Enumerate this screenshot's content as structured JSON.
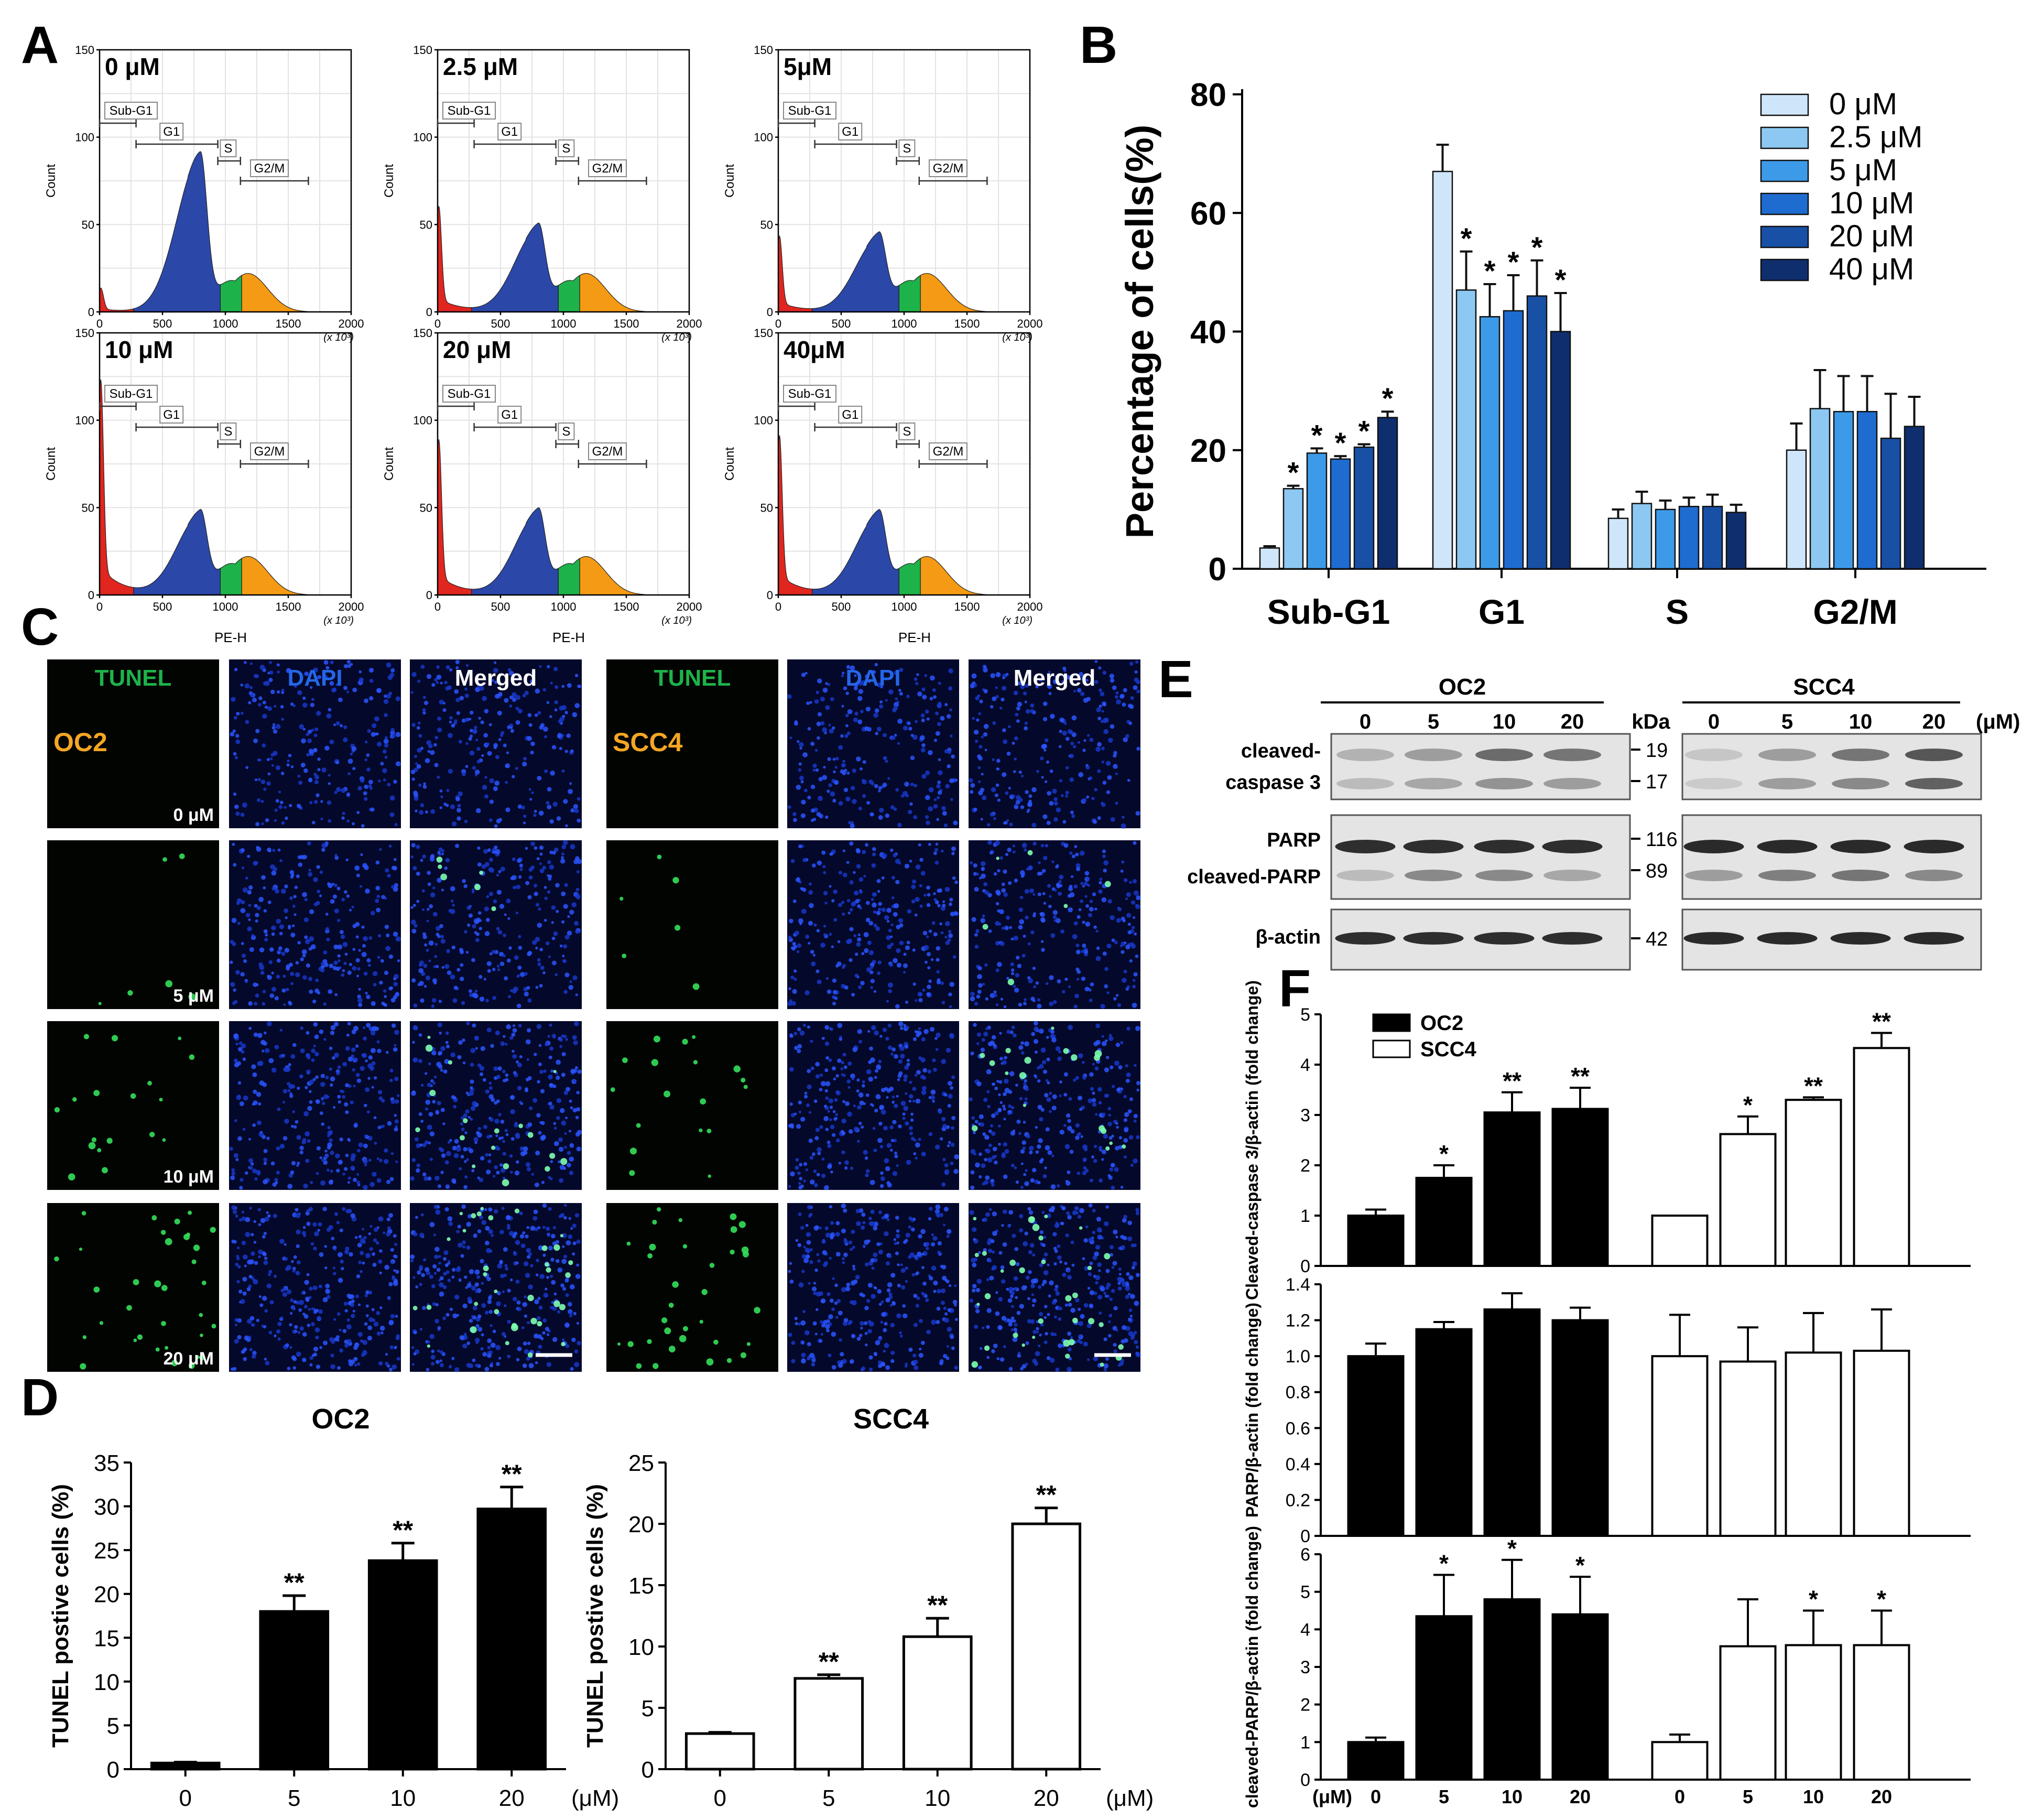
{
  "panels": {
    "A": "A",
    "B": "B",
    "C": "C",
    "D": "D",
    "E": "E",
    "F": "F"
  },
  "panel_a": {
    "histograms": [
      {
        "label": "0 μM",
        "peak": 88,
        "tail": 12
      },
      {
        "label": "2.5 μM",
        "peak": 47,
        "tail": 53
      },
      {
        "label": "5μM",
        "peak": 42,
        "tail": 38
      },
      {
        "label": "10 μM",
        "peak": 45,
        "tail": 108
      },
      {
        "label": "20 μM",
        "peak": 46,
        "tail": 78
      },
      {
        "label": "40μM",
        "peak": 45,
        "tail": 80
      }
    ],
    "gates": {
      "sub_g1": "Sub-G1",
      "g1": "G1",
      "s": "S",
      "g2m": "G2/M"
    },
    "xlabel": "PE-H",
    "ylabel": "Count",
    "x_unit": "(x 10³)",
    "x_ticks": [
      "0",
      "500",
      "1000",
      "1500",
      "2000"
    ],
    "y_ticks": [
      "0",
      "50",
      "100",
      "150"
    ],
    "phase_colors": {
      "subg1": "#e0261f",
      "g1": "#2b47a8",
      "s": "#1db34a",
      "g2m": "#f59a14"
    }
  },
  "chart_data": [
    {
      "id": "B",
      "type": "bar",
      "categories": [
        "Sub-G1",
        "G1",
        "S",
        "G2/M"
      ],
      "series": [
        {
          "name": "0  μM",
          "color": "#cfe6fa",
          "values": [
            3.5,
            67,
            8.5,
            20
          ],
          "errors": [
            0.3,
            4.5,
            1.5,
            4.5
          ],
          "sig": [
            "",
            "",
            "",
            ""
          ]
        },
        {
          "name": "2.5  μM",
          "color": "#8cc8f2",
          "values": [
            13.5,
            47,
            11,
            27
          ],
          "errors": [
            0.5,
            6.5,
            2.0,
            6.5
          ],
          "sig": [
            "*",
            "*",
            "",
            ""
          ]
        },
        {
          "name": "5  μM",
          "color": "#3d9ae8",
          "values": [
            19.5,
            42.5,
            10,
            26.5
          ],
          "errors": [
            0.8,
            5.5,
            1.5,
            6.0
          ],
          "sig": [
            "*",
            "*",
            "",
            ""
          ]
        },
        {
          "name": "10  μM",
          "color": "#1e6cd0",
          "values": [
            18.5,
            43.5,
            10.5,
            26.5
          ],
          "errors": [
            0.5,
            6.0,
            1.5,
            6.0
          ],
          "sig": [
            "*",
            "*",
            "",
            ""
          ]
        },
        {
          "name": "20  μM",
          "color": "#1850a6",
          "values": [
            20.5,
            46,
            10.5,
            22
          ],
          "errors": [
            0.5,
            6.0,
            2.0,
            7.5
          ],
          "sig": [
            "*",
            "*",
            "",
            ""
          ]
        },
        {
          "name": "40  μM",
          "color": "#0f2e6e",
          "values": [
            25.5,
            40,
            9.5,
            24
          ],
          "errors": [
            1.0,
            6.5,
            1.3,
            5.0
          ],
          "sig": [
            "*",
            "*",
            "",
            ""
          ]
        }
      ],
      "ylabel": "Percentage of cells(%)",
      "ylim": [
        0,
        80
      ],
      "yticks": [
        0,
        20,
        40,
        60,
        80
      ]
    },
    {
      "id": "D-OC2",
      "type": "bar",
      "title": "OC2",
      "categories": [
        "0",
        "5",
        "10",
        "20"
      ],
      "values": [
        0.7,
        18,
        23.8,
        29.7
      ],
      "errors": [
        0.1,
        1.8,
        2.0,
        2.5
      ],
      "sig": [
        "",
        "**",
        "**",
        "**"
      ],
      "fill": "#000000",
      "ylabel": "TUNEL postive cells (%)",
      "ylim": [
        0,
        35
      ],
      "yticks": [
        0,
        5,
        10,
        15,
        20,
        25,
        30,
        35
      ],
      "xunit": "(μM)"
    },
    {
      "id": "D-SCC4",
      "type": "bar",
      "title": "SCC4",
      "categories": [
        "0",
        "5",
        "10",
        "20"
      ],
      "values": [
        2.9,
        7.4,
        10.8,
        20
      ],
      "errors": [
        0.1,
        0.3,
        1.5,
        1.3
      ],
      "sig": [
        "",
        "**",
        "**",
        "**"
      ],
      "fill": "#ffffff",
      "ylabel": "TUNEL postive cells (%)",
      "ylim": [
        0,
        25
      ],
      "yticks": [
        0,
        5,
        10,
        15,
        20,
        25
      ],
      "xunit": "(μM)"
    },
    {
      "id": "F1",
      "type": "bar",
      "categories": [
        "0",
        "5",
        "10",
        "20",
        "0",
        "5",
        "10",
        "20"
      ],
      "values": [
        1.0,
        1.75,
        3.05,
        3.12,
        1.0,
        2.62,
        3.3,
        4.33
      ],
      "errors": [
        0.12,
        0.25,
        0.4,
        0.42,
        0.0,
        0.35,
        0.05,
        0.3
      ],
      "sig": [
        "",
        "*",
        "**",
        "**",
        "",
        "*",
        "**",
        "**"
      ],
      "ylabel": "Cleaved-caspase 3/β-actin (fold change)",
      "ylim": [
        0,
        5
      ],
      "yticks": [
        "0",
        "1",
        "2",
        "3",
        "4",
        "5"
      ]
    },
    {
      "id": "F2",
      "type": "bar",
      "categories": [
        "0",
        "5",
        "10",
        "20",
        "0",
        "5",
        "10",
        "20"
      ],
      "values": [
        1.0,
        1.15,
        1.26,
        1.2,
        1.0,
        0.97,
        1.02,
        1.03
      ],
      "errors": [
        0.07,
        0.04,
        0.09,
        0.07,
        0.23,
        0.19,
        0.22,
        0.23
      ],
      "sig": [
        "",
        "",
        "",
        "",
        "",
        "",
        "",
        ""
      ],
      "ylabel": "PARP/β-actin (fold change)",
      "ylim": [
        0,
        1.4
      ],
      "yticks": [
        "0",
        "0.2",
        "0.4",
        "0.6",
        "0.8",
        "1.0",
        "1.2",
        "1.4"
      ]
    },
    {
      "id": "F3",
      "type": "bar",
      "categories": [
        "0",
        "5",
        "10",
        "20",
        "0",
        "5",
        "10",
        "20"
      ],
      "values": [
        1.0,
        4.35,
        4.8,
        4.4,
        1.0,
        3.55,
        3.58,
        3.58
      ],
      "errors": [
        0.12,
        1.1,
        1.05,
        1.0,
        0.2,
        1.25,
        0.92,
        0.92
      ],
      "sig": [
        "",
        "*",
        "*",
        "*",
        "",
        "",
        "*",
        "*"
      ],
      "ylabel": "cleaved-PARP/β-actin (fold change)",
      "ylim": [
        0,
        6
      ],
      "yticks": [
        "0",
        "1",
        "2",
        "3",
        "4",
        "5",
        "6"
      ]
    }
  ],
  "panel_c": {
    "col_tunel": "TUNEL",
    "col_dapi": "DAPI",
    "col_merged": "Merged",
    "cell_oc2": "OC2",
    "cell_scc4": "SCC4",
    "doses": [
      "0 μM",
      "5 μM",
      "10 μM",
      "20 μM"
    ],
    "colors": {
      "tunel": "#1db34a",
      "dapi": "#2466e8",
      "merged": "#ffffff",
      "cell": "#f5a623"
    }
  },
  "panel_e": {
    "oc2": "OC2",
    "scc4": "SCC4",
    "doses": [
      "0",
      "5",
      "10",
      "20"
    ],
    "unit": "(μM)",
    "kda": "kDa",
    "row_labels": {
      "casp_1": "cleaved-",
      "casp_2": "caspase 3",
      "parp": "PARP",
      "cparp": "cleaved-PARP",
      "actin": "β-actin"
    },
    "markers": {
      "m19": "19",
      "m17": "17",
      "m116": "116",
      "m89": "89",
      "m42": "42"
    }
  },
  "panel_f": {
    "legend": {
      "oc2": "OC2",
      "scc4": "SCC4"
    },
    "unit": "(μM)",
    "doses": [
      "0",
      "5",
      "10",
      "20",
      "0",
      "5",
      "10",
      "20"
    ]
  }
}
